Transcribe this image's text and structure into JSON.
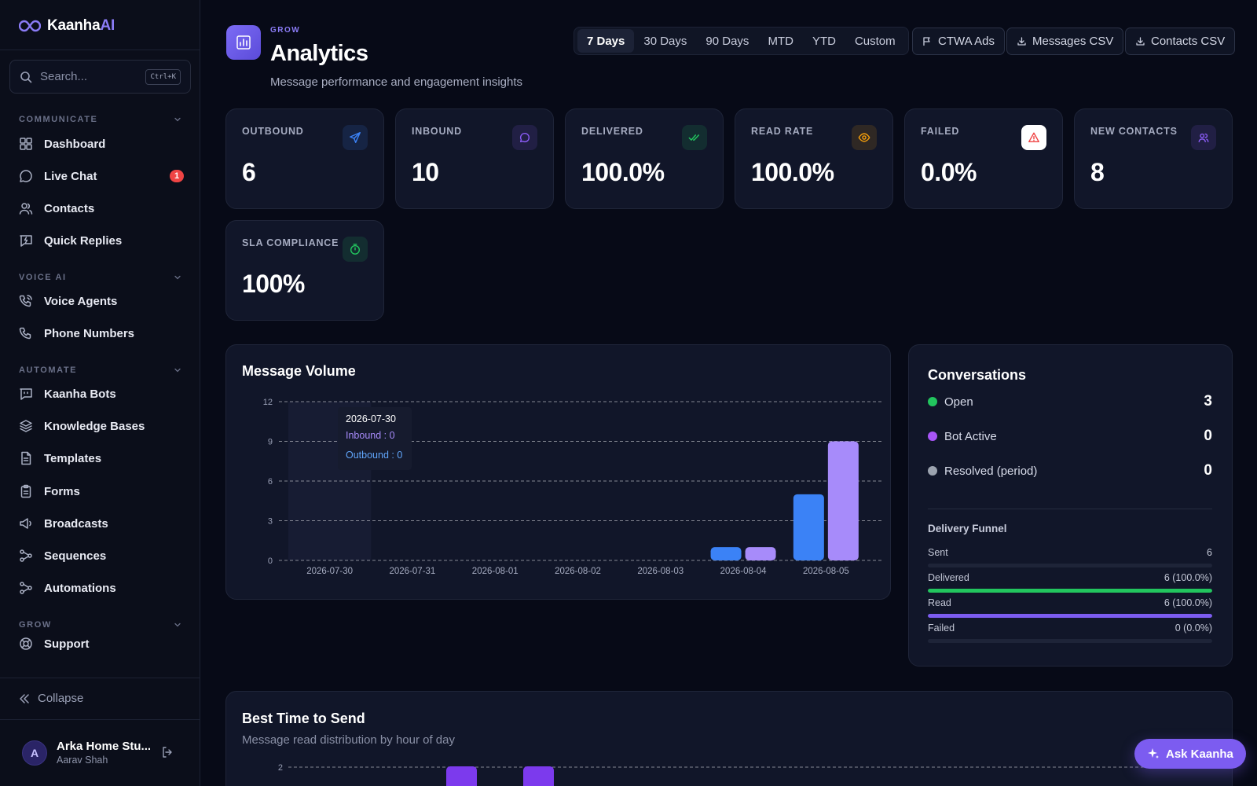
{
  "brand": {
    "name_main": "Kaanha",
    "name_accent": "AI"
  },
  "search": {
    "placeholder": "Search...",
    "shortcut": "Ctrl+K"
  },
  "sidebar": {
    "sections": [
      {
        "title": "COMMUNICATE",
        "items": [
          {
            "label": "Dashboard",
            "icon": "grid-icon"
          },
          {
            "label": "Live Chat",
            "icon": "chat-bubble-icon",
            "badge": "1"
          },
          {
            "label": "Contacts",
            "icon": "users-icon"
          },
          {
            "label": "Quick Replies",
            "icon": "message-bolt-icon"
          }
        ]
      },
      {
        "title": "VOICE AI",
        "items": [
          {
            "label": "Voice Agents",
            "icon": "phone-wave-icon"
          },
          {
            "label": "Phone Numbers",
            "icon": "phone-icon"
          }
        ]
      },
      {
        "title": "AUTOMATE",
        "items": [
          {
            "label": "Kaanha Bots",
            "icon": "bot-message-icon"
          },
          {
            "label": "Knowledge Bases",
            "icon": "layers-icon"
          },
          {
            "label": "Templates",
            "icon": "file-text-icon"
          },
          {
            "label": "Forms",
            "icon": "clipboard-icon"
          },
          {
            "label": "Broadcasts",
            "icon": "megaphone-icon"
          },
          {
            "label": "Sequences",
            "icon": "workflow-icon"
          },
          {
            "label": "Automations",
            "icon": "workflow-icon"
          }
        ]
      },
      {
        "title": "GROW",
        "items": [
          {
            "label": "Support",
            "icon": "lifebuoy-icon"
          }
        ]
      }
    ],
    "collapse_label": "Collapse",
    "user": {
      "initial": "A",
      "org": "Arka Home Stu...",
      "name": "Aarav Shah"
    }
  },
  "header": {
    "kicker": "GROW",
    "title": "Analytics",
    "subtitle": "Message performance and engagement insights",
    "ranges": [
      "7 Days",
      "30 Days",
      "90 Days",
      "MTD",
      "YTD",
      "Custom"
    ],
    "active_range": "7 Days",
    "actions": [
      "CTWA Ads",
      "Messages CSV",
      "Contacts CSV"
    ]
  },
  "stats": [
    {
      "label": "OUTBOUND",
      "value": "6",
      "icon": "send-icon",
      "color": "#3b82f6"
    },
    {
      "label": "INBOUND",
      "value": "10",
      "icon": "chat-bubble-icon",
      "color": "#8b5cf6"
    },
    {
      "label": "DELIVERED",
      "value": "100.0%",
      "icon": "double-check-icon",
      "color": "#22c55e"
    },
    {
      "label": "READ RATE",
      "value": "100.0%",
      "icon": "eye-icon",
      "color": "#f59e0b"
    },
    {
      "label": "FAILED",
      "value": "0.0%",
      "icon": "warning-triangle-icon",
      "color": "#ef4444"
    },
    {
      "label": "NEW CONTACTS",
      "value": "8",
      "icon": "users-icon",
      "color": "#8b5cf6"
    },
    {
      "label": "SLA COMPLIANCE",
      "value": "100%",
      "icon": "stopwatch-icon",
      "color": "#22c55e"
    }
  ],
  "message_volume": {
    "title": "Message Volume",
    "tooltip": {
      "date": "2026-07-30",
      "inbound": "Inbound : 0",
      "outbound": "Outbound : 0"
    },
    "chart_data": {
      "type": "bar",
      "categories": [
        "2026-07-30",
        "2026-07-31",
        "2026-08-01",
        "2026-08-02",
        "2026-08-03",
        "2026-08-04",
        "2026-08-05"
      ],
      "series": [
        {
          "name": "Outbound",
          "values": [
            0,
            0,
            0,
            0,
            0,
            1,
            5
          ],
          "color": "#3b82f6"
        },
        {
          "name": "Inbound",
          "values": [
            0,
            0,
            0,
            0,
            0,
            1,
            9
          ],
          "color": "#a78bfa"
        }
      ],
      "yticks": [
        "0",
        "3",
        "6",
        "9",
        "12"
      ],
      "ylim": [
        0,
        12
      ],
      "grid": true
    }
  },
  "conversations": {
    "title": "Conversations",
    "rows": [
      {
        "label": "Open",
        "value": "3",
        "color": "#22c55e"
      },
      {
        "label": "Bot Active",
        "value": "0",
        "color": "#a855f7"
      },
      {
        "label": "Resolved (period)",
        "value": "0",
        "color": "#9ca3af"
      }
    ],
    "funnel_title": "Delivery Funnel",
    "funnel": [
      {
        "label": "Sent",
        "value": "6",
        "fraction": 0,
        "color": "#3b82f6"
      },
      {
        "label": "Delivered",
        "value": "6 (100.0%)",
        "fraction": 1,
        "color": "#22c55e"
      },
      {
        "label": "Read",
        "value": "6 (100.0%)",
        "fraction": 1,
        "color": "#7c5cf0"
      },
      {
        "label": "Failed",
        "value": "0 (0.0%)",
        "fraction": 0,
        "color": "#ef4444"
      }
    ]
  },
  "best_time": {
    "title": "Best Time to Send",
    "subtitle": "Message read distribution by hour of day",
    "chart_data": {
      "type": "bar",
      "yticks": [
        "2"
      ],
      "ylim": [
        0,
        2
      ],
      "grid": true
    }
  },
  "ask_button": "Ask Kaanha"
}
